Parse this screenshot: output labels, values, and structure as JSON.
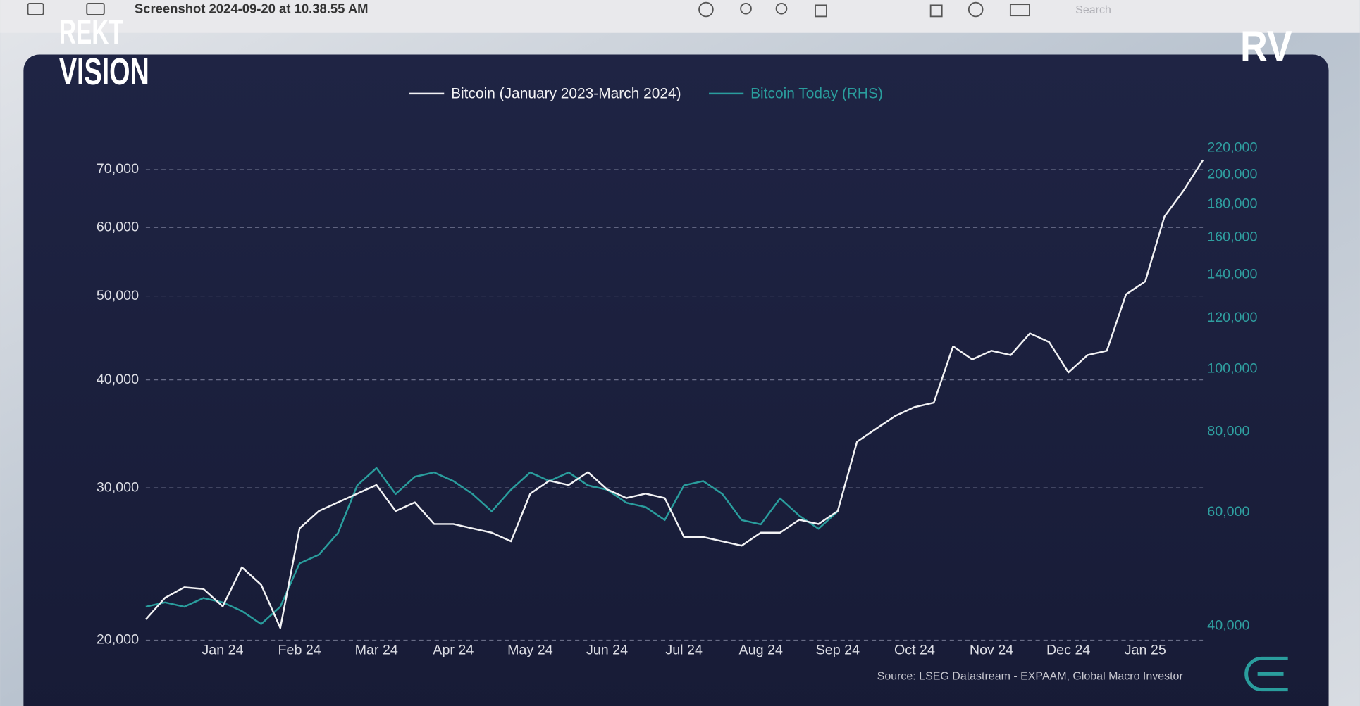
{
  "window": {
    "title": "Screenshot 2024-09-20 at 10.38.55 AM",
    "search": "Search"
  },
  "logos": {
    "left_top": "REKT",
    "left_bottom": "VISION",
    "right": "RV"
  },
  "chart_data": {
    "type": "line",
    "categories": [
      null,
      null,
      null,
      null,
      "Jan 24",
      null,
      null,
      null,
      "Feb 24",
      null,
      null,
      null,
      "Mar 24",
      null,
      null,
      null,
      "Apr 24",
      null,
      null,
      null,
      "May 24",
      null,
      null,
      null,
      "Jun 24",
      null,
      null,
      null,
      "Jul 24",
      null,
      null,
      null,
      "Aug 24",
      null,
      null,
      null,
      "Sep 24",
      null,
      null,
      null,
      "Oct 24",
      null,
      null,
      null,
      "Nov 24",
      null,
      null,
      null,
      "Dec 24",
      null,
      null,
      null,
      "Jan 25",
      null,
      null,
      null
    ],
    "series": [
      {
        "name": "Bitcoin (January 2023-March 2024)",
        "color": "#f2f2f4",
        "axis": "y",
        "values": [
          21140,
          22390,
          23020,
          22920,
          21880,
          24280,
          23180,
          20660,
          26930,
          28210,
          28870,
          29540,
          30230,
          28210,
          28870,
          27250,
          27250,
          26930,
          26630,
          26020,
          29540,
          30580,
          30230,
          31290,
          29880,
          29200,
          29540,
          29200,
          26320,
          26320,
          26020,
          25720,
          26630,
          26630,
          27560,
          27250,
          28210,
          33920,
          35120,
          36350,
          37200,
          37640,
          43730,
          42240,
          43220,
          42730,
          45270,
          44230,
          40800,
          42730,
          43220,
          50220,
          51980,
          61810,
          66240,
          71810
        ]
      },
      {
        "name": "Bitcoin Today (RHS)",
        "color": "#2a9d9d",
        "axis": "y2",
        "values": [
          42820,
          43490,
          42820,
          44160,
          43490,
          42160,
          40250,
          42820,
          49980,
          51550,
          55700,
          66030,
          70240,
          64020,
          68100,
          69170,
          67060,
          64020,
          60180,
          65020,
          69170,
          67060,
          69170,
          66030,
          65020,
          62070,
          61120,
          58340,
          66030,
          67060,
          64020,
          58340,
          57450,
          63040,
          59250,
          56560,
          60180,
          null,
          null,
          null,
          null,
          null,
          null,
          null,
          null,
          null,
          null,
          null,
          null,
          null,
          null,
          null,
          null,
          null,
          null,
          null
        ]
      }
    ],
    "ylog": true,
    "ylim": [
      20000,
      74300
    ],
    "yticks": [
      {
        "value": 20000,
        "label": "20,000"
      },
      {
        "value": 30000,
        "label": "30,000"
      },
      {
        "value": 40000,
        "label": "40,000"
      },
      {
        "value": 50000,
        "label": "50,000"
      },
      {
        "value": 60000,
        "label": "60,000"
      },
      {
        "value": 70000,
        "label": "70,000"
      }
    ],
    "y2log": true,
    "y2lim": [
      38000,
      220700
    ],
    "y2ticks": [
      {
        "value": 40000,
        "label": "40,000"
      },
      {
        "value": 60000,
        "label": "60,000"
      },
      {
        "value": 80000,
        "label": "80,000"
      },
      {
        "value": 100000,
        "label": "100,000"
      },
      {
        "value": 120000,
        "label": "120,000"
      },
      {
        "value": 140000,
        "label": "140,000"
      },
      {
        "value": 160000,
        "label": "160,000"
      },
      {
        "value": 180000,
        "label": "180,000"
      },
      {
        "value": 200000,
        "label": "200,000"
      },
      {
        "value": 220000,
        "label": "220,000"
      }
    ],
    "grid": true,
    "legend": "top",
    "source": "Source: LSEG Datastream - EXPAAM, Global Macro Investor"
  }
}
